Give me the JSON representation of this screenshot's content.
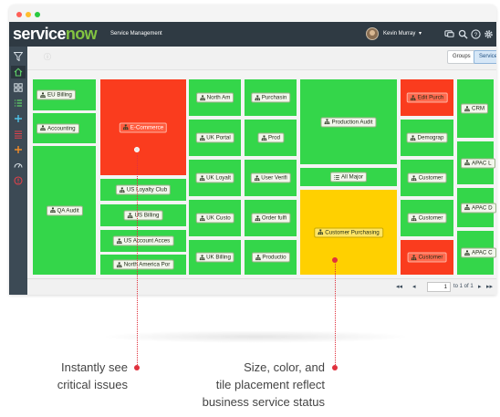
{
  "window": {
    "dots": [
      "#ff5f57",
      "#ffbd2e",
      "#28c940"
    ]
  },
  "header": {
    "logo_service": "service",
    "logo_now": "now",
    "app_title": "Service Management",
    "user_name": "Kevin Murray",
    "user_caret": "▾",
    "icons": [
      "chat-icon",
      "search-icon",
      "help-icon",
      "gear-icon"
    ]
  },
  "left_nav": {
    "icons": [
      "filter-icon",
      "home-icon",
      "grid-icon",
      "list-icon",
      "add-icon",
      "queue-icon",
      "plus-icon",
      "dashboard-icon",
      "alert-icon"
    ]
  },
  "toolbar": {
    "groups_label": "Groups",
    "services_label": "Services"
  },
  "colors": {
    "healthy": "#34d64a",
    "critical": "#fa3c1e",
    "warning": "#ffd000",
    "critical_label": "#ff3b2a"
  },
  "tiles": [
    {
      "label": "EU Billing",
      "status": "healthy"
    },
    {
      "label": "Accounting",
      "status": "healthy"
    },
    {
      "label": "QA Audit",
      "status": "healthy"
    },
    {
      "label": "E-Commerce",
      "status": "critical"
    },
    {
      "label": "US Loyalty Club",
      "status": "healthy"
    },
    {
      "label": "US Billing",
      "status": "healthy"
    },
    {
      "label": "US Account Acces",
      "status": "healthy"
    },
    {
      "label": "North America Por",
      "status": "healthy"
    },
    {
      "label": "North Am",
      "status": "healthy"
    },
    {
      "label": "UK Portal",
      "status": "healthy"
    },
    {
      "label": "UK Loyalt",
      "status": "healthy"
    },
    {
      "label": "UK Custo",
      "status": "healthy"
    },
    {
      "label": "UK Billing",
      "status": "healthy"
    },
    {
      "label": "Purchasin",
      "status": "healthy"
    },
    {
      "label": "Prod",
      "status": "healthy"
    },
    {
      "label": "User Verifi",
      "status": "healthy"
    },
    {
      "label": "Order fulfi",
      "status": "healthy"
    },
    {
      "label": "Productio",
      "status": "healthy"
    },
    {
      "label": "Production Audit",
      "status": "healthy"
    },
    {
      "label": "All Major",
      "status": "healthy"
    },
    {
      "label": "Customer Purchasing",
      "status": "warning"
    },
    {
      "label": "Edit Purch",
      "status": "critical"
    },
    {
      "label": "Demograp",
      "status": "healthy"
    },
    {
      "label": "Customer",
      "status": "healthy"
    },
    {
      "label": "Customer",
      "status": "healthy"
    },
    {
      "label": "Customer",
      "status": "critical"
    },
    {
      "label": "CRM",
      "status": "healthy"
    },
    {
      "label": "APAC L",
      "status": "healthy"
    },
    {
      "label": "APAC D",
      "status": "healthy"
    },
    {
      "label": "APAC C",
      "status": "healthy"
    }
  ],
  "pager": {
    "first": "◂◂",
    "prev": "◂",
    "page": "1",
    "of_text": "to 1 of 1",
    "next": "▸",
    "last": "▸▸"
  },
  "callouts": {
    "left": [
      "Instantly see",
      "critical issues"
    ],
    "right": [
      "Size, color, and",
      "tile placement reflect",
      "business service status"
    ]
  }
}
